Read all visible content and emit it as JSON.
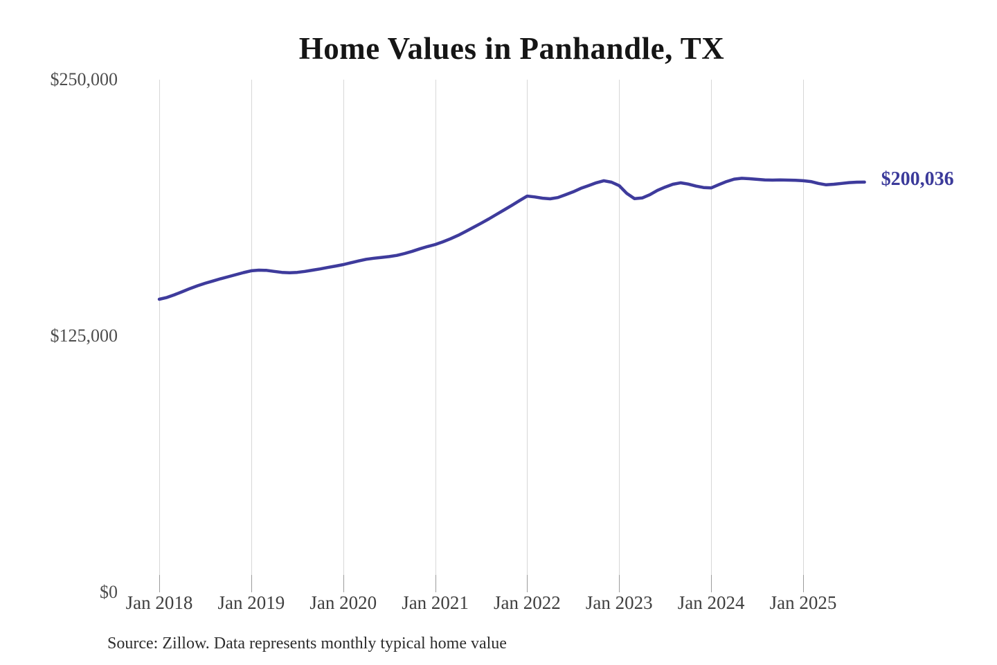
{
  "title": "Home Values in Panhandle, TX",
  "source_note": "Source: Zillow. Data represents monthly typical home value",
  "colors": {
    "background": "#ffffff",
    "line": "#3e3b9c",
    "latest_label": "#3b3a9a",
    "gridline": "#d7d7d7",
    "tickmark": "#9b9b9b",
    "y_label_text": "#4d4d4d",
    "x_label_text": "#3f3f3f",
    "title_text": "#151515",
    "source_text": "#2d2d2d"
  },
  "chart_data": {
    "type": "line",
    "title": "Home Values in Panhandle, TX",
    "series_name": "Monthly typical home value",
    "frequency": "monthly",
    "x_start": "2018-01",
    "x_end": "2025-09",
    "ylim": [
      0,
      250000
    ],
    "grid": "vertical-only",
    "legend_position": "none",
    "latest_label": "$200,036",
    "latest_value": 200036,
    "y_ticks": [
      {
        "label": "$250,000",
        "value": 250000
      },
      {
        "label": "$125,000",
        "value": 125000
      },
      {
        "label": "$0",
        "value": 0
      }
    ],
    "x_tick_labels": [
      "Jan 2018",
      "Jan 2019",
      "Jan 2020",
      "Jan 2021",
      "Jan 2022",
      "Jan 2023",
      "Jan 2024",
      "Jan 2025"
    ],
    "values": [
      142900,
      143800,
      145100,
      146600,
      148100,
      149500,
      150700,
      151800,
      152900,
      153900,
      154900,
      155900,
      156800,
      157100,
      157000,
      156500,
      156000,
      155800,
      156000,
      156500,
      157100,
      157700,
      158400,
      159100,
      159800,
      160700,
      161600,
      162400,
      162900,
      163300,
      163700,
      164300,
      165200,
      166300,
      167500,
      168600,
      169600,
      170900,
      172400,
      174100,
      176000,
      178000,
      180000,
      182100,
      184300,
      186500,
      188700,
      191000,
      193200,
      192800,
      192200,
      191900,
      192500,
      193900,
      195300,
      197000,
      198300,
      199700,
      200700,
      200000,
      198300,
      194500,
      192000,
      192300,
      193900,
      196000,
      197600,
      199000,
      199700,
      199100,
      198100,
      197400,
      197200,
      198800,
      200300,
      201500,
      201900,
      201700,
      201400,
      201100,
      201000,
      201100,
      201000,
      200900,
      200700,
      200300,
      199400,
      198700,
      199000,
      199400,
      199800,
      200000,
      200036
    ]
  }
}
